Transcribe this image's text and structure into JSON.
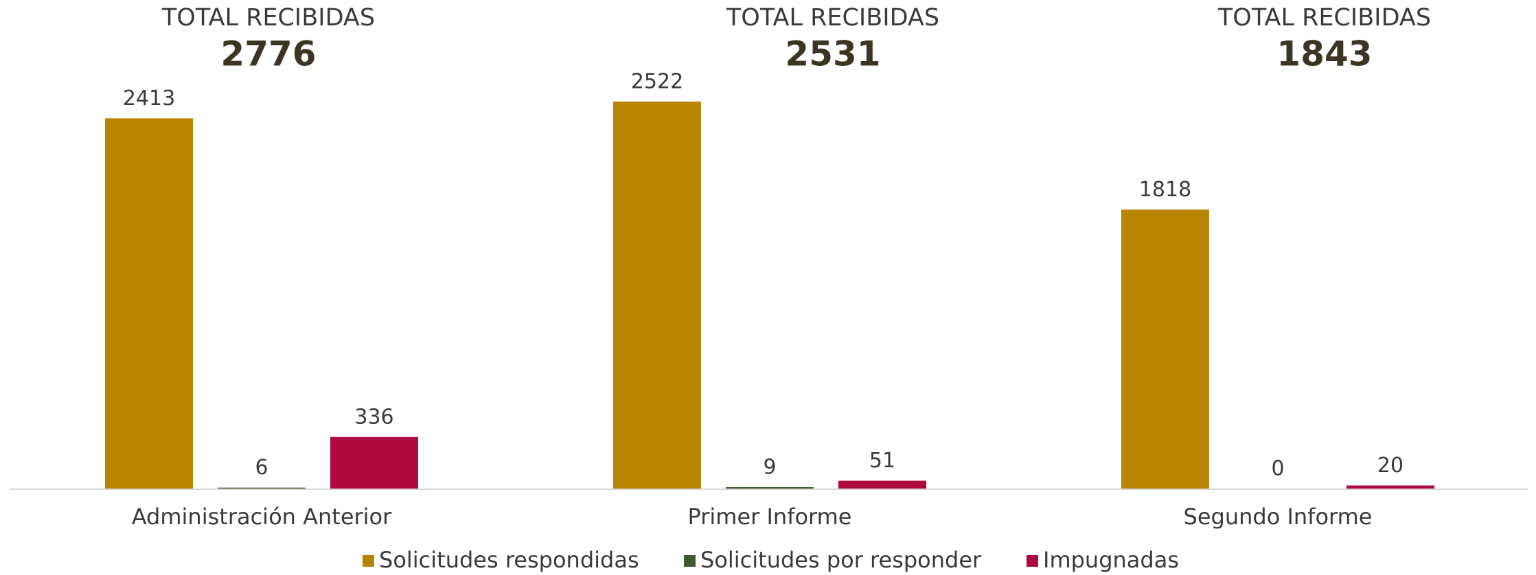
{
  "chart_data": {
    "type": "bar",
    "annotations": [
      {
        "label": "TOTAL RECIBIDAS",
        "value": 2776
      },
      {
        "label": "TOTAL RECIBIDAS",
        "value": 2531
      },
      {
        "label": "TOTAL RECIBIDAS",
        "value": 1843
      }
    ],
    "categories": [
      "Administración Anterior",
      "Primer Informe",
      "Segundo Informe"
    ],
    "series": [
      {
        "name": "Solicitudes respondidas",
        "color": "#b98500",
        "values": [
          2413,
          2522,
          1818
        ]
      },
      {
        "name": "Solicitudes por responder",
        "color": "#3e5b2b",
        "values": [
          6,
          9,
          0
        ]
      },
      {
        "name": "Impugnadas",
        "color": "#ad0b3e",
        "values": [
          336,
          51,
          20
        ]
      }
    ],
    "legend": "bottom"
  }
}
